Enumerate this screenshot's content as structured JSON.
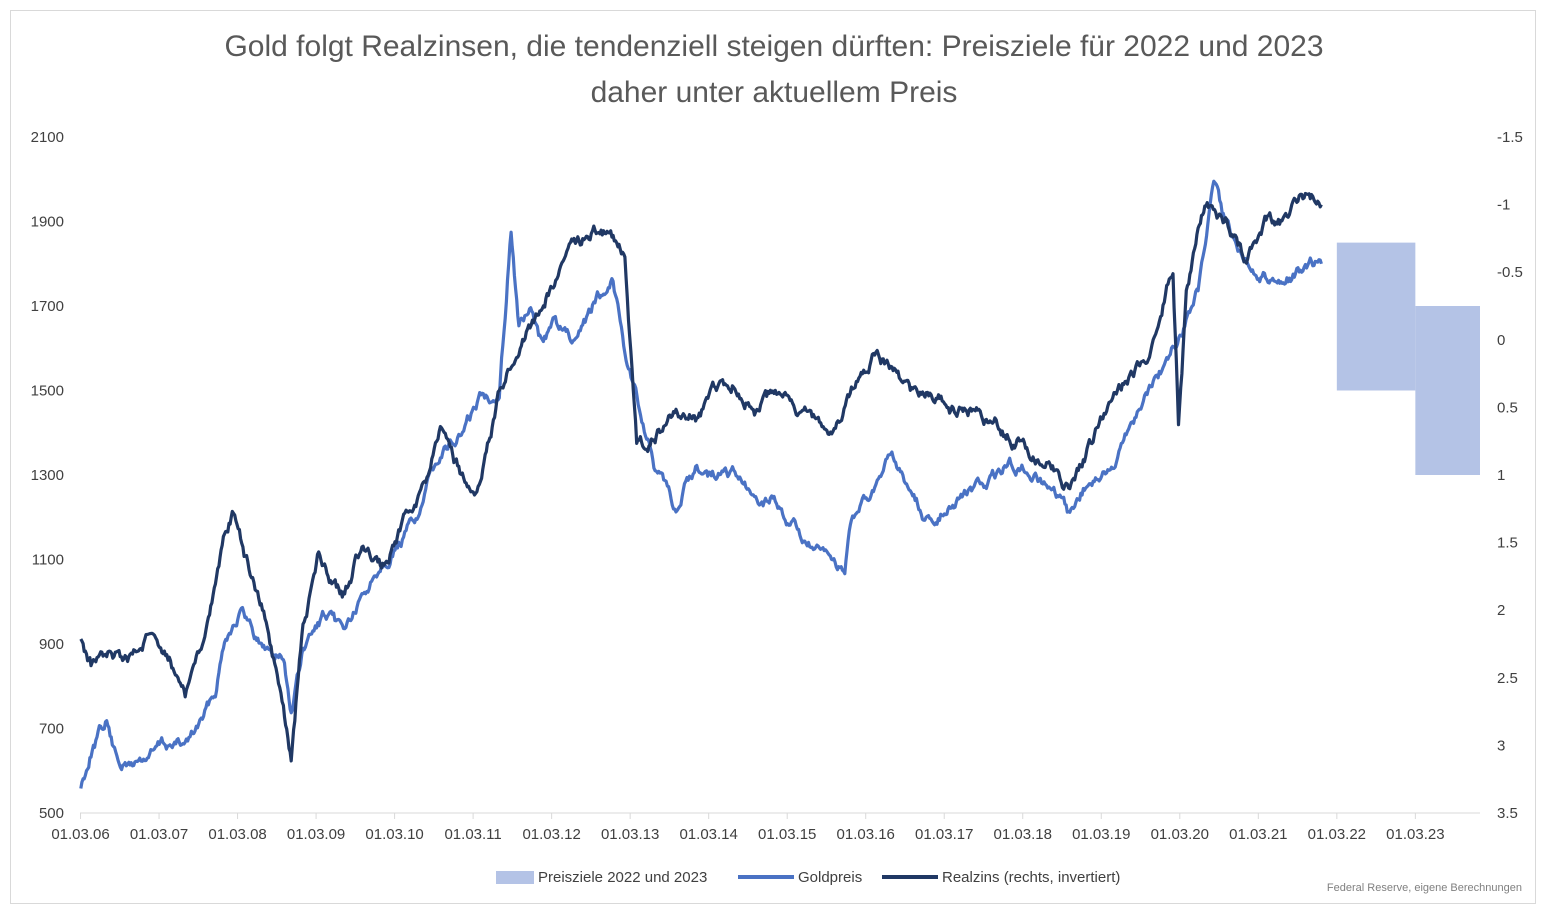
{
  "chart_data": {
    "type": "line",
    "title": "Gold folgt Realzinsen, die tendenziell steigen dürften: Preisziele für 2022 und 2023",
    "subtitle": "daher unter aktuellem Preis",
    "source": "Federal Reserve, eigene Berechnungen",
    "x_ticks": [
      "01.03.06",
      "01.03.07",
      "01.03.08",
      "01.03.09",
      "01.03.10",
      "01.03.11",
      "01.03.12",
      "01.03.13",
      "01.03.14",
      "01.03.15",
      "01.03.16",
      "01.03.17",
      "01.03.18",
      "01.03.19",
      "01.03.20",
      "01.03.21",
      "01.03.22",
      "01.03.23"
    ],
    "y_left": {
      "min": 500,
      "max": 2100,
      "ticks": [
        "2100",
        "1900",
        "1700",
        "1500",
        "1300",
        "1100",
        "900",
        "700",
        "500"
      ]
    },
    "y_right": {
      "min": -1.5,
      "max": 3.5,
      "inverted": true,
      "ticks": [
        "-1.5",
        "-1",
        "-0.5",
        "0",
        "0.5",
        "1",
        "1.5",
        "2",
        "2.5",
        "3",
        "3.5"
      ]
    },
    "legend": [
      "Preisziele 2022 und 2023",
      "Goldpreis",
      "Realzins (rechts, invertiert)"
    ],
    "colors": {
      "ranges": "#b4c3e6",
      "gold": "#4a72c4",
      "realzins": "#203864"
    },
    "ranges": [
      {
        "name": "Preisziele 2022",
        "x_start": "01.03.22",
        "x_end": "01.03.23",
        "low": 1500,
        "high": 1850
      },
      {
        "name": "Preisziele 2023",
        "x_start": "01.03.23",
        "x_end": "31.12.23",
        "low": 1300,
        "high": 1700
      }
    ],
    "series": [
      {
        "name": "Goldpreis",
        "axis": "left",
        "x": [
          2006.17,
          2006.3,
          2006.5,
          2006.6,
          2006.75,
          2007.0,
          2007.2,
          2007.5,
          2007.75,
          2007.9,
          2008.0,
          2008.2,
          2008.5,
          2008.75,
          2008.85,
          2009.0,
          2009.25,
          2009.5,
          2009.75,
          2010.0,
          2010.25,
          2010.5,
          2010.75,
          2011.0,
          2011.25,
          2011.5,
          2011.65,
          2011.75,
          2011.9,
          2012.0,
          2012.2,
          2012.5,
          2012.75,
          2012.95,
          2013.1,
          2013.3,
          2013.5,
          2013.75,
          2014.0,
          2014.2,
          2014.5,
          2014.75,
          2015.0,
          2015.25,
          2015.5,
          2015.7,
          2015.9,
          2016.0,
          2016.25,
          2016.5,
          2016.75,
          2016.95,
          2017.2,
          2017.5,
          2017.75,
          2018.0,
          2018.25,
          2018.5,
          2018.75,
          2019.0,
          2019.25,
          2019.5,
          2019.75,
          2020.0,
          2020.2,
          2020.4,
          2020.6,
          2020.75,
          2021.0,
          2021.2,
          2021.5,
          2021.75,
          2021.97
        ],
        "y": [
          560,
          650,
          720,
          640,
          610,
          630,
          660,
          660,
          730,
          800,
          920,
          980,
          890,
          870,
          740,
          880,
          960,
          930,
          1000,
          1100,
          1140,
          1220,
          1360,
          1390,
          1480,
          1500,
          1890,
          1650,
          1690,
          1620,
          1660,
          1600,
          1720,
          1770,
          1600,
          1450,
          1300,
          1220,
          1320,
          1300,
          1300,
          1230,
          1240,
          1180,
          1120,
          1090,
          1080,
          1200,
          1250,
          1340,
          1260,
          1190,
          1230,
          1260,
          1280,
          1330,
          1310,
          1270,
          1200,
          1290,
          1300,
          1410,
          1500,
          1570,
          1640,
          1740,
          1980,
          1880,
          1820,
          1780,
          1760,
          1790,
          1800
        ]
      },
      {
        "name": "Realzins (rechts, invertiert)",
        "axis": "right",
        "x": [
          2006.17,
          2006.3,
          2006.5,
          2006.75,
          2007.0,
          2007.25,
          2007.5,
          2007.75,
          2007.9,
          2008.0,
          2008.1,
          2008.25,
          2008.5,
          2008.75,
          2008.85,
          2009.0,
          2009.2,
          2009.5,
          2009.75,
          2010.0,
          2010.25,
          2010.5,
          2010.75,
          2011.0,
          2011.2,
          2011.5,
          2011.75,
          2012.0,
          2012.25,
          2012.5,
          2012.75,
          2012.95,
          2013.1,
          2013.25,
          2013.5,
          2013.75,
          2014.0,
          2014.25,
          2014.5,
          2014.75,
          2015.0,
          2015.25,
          2015.5,
          2015.75,
          2016.0,
          2016.25,
          2016.5,
          2016.75,
          2017.0,
          2017.25,
          2017.5,
          2017.75,
          2018.0,
          2018.25,
          2018.5,
          2018.75,
          2019.0,
          2019.25,
          2019.5,
          2019.75,
          2020.0,
          2020.08,
          2020.15,
          2020.25,
          2020.4,
          2020.5,
          2020.75,
          2021.0,
          2021.25,
          2021.5,
          2021.75,
          2021.97
        ],
        "y": [
          2.2,
          2.4,
          2.3,
          2.4,
          2.2,
          2.3,
          2.6,
          2.2,
          1.8,
          1.5,
          1.3,
          1.6,
          2.0,
          2.7,
          3.1,
          2.1,
          1.6,
          1.9,
          1.5,
          1.7,
          1.4,
          1.2,
          0.7,
          1.0,
          1.2,
          0.4,
          0.0,
          -0.2,
          -0.5,
          -0.7,
          -0.8,
          -0.75,
          -0.6,
          0.8,
          0.7,
          0.5,
          0.6,
          0.4,
          0.3,
          0.5,
          0.4,
          0.5,
          0.6,
          0.7,
          0.4,
          0.1,
          0.2,
          0.4,
          0.4,
          0.5,
          0.5,
          0.6,
          0.7,
          0.8,
          0.9,
          1.1,
          0.8,
          0.5,
          0.3,
          0.1,
          -0.4,
          -0.5,
          0.6,
          -0.3,
          -0.8,
          -1.0,
          -0.9,
          -0.6,
          -0.9,
          -0.85,
          -1.05,
          -1.0
        ]
      }
    ]
  }
}
